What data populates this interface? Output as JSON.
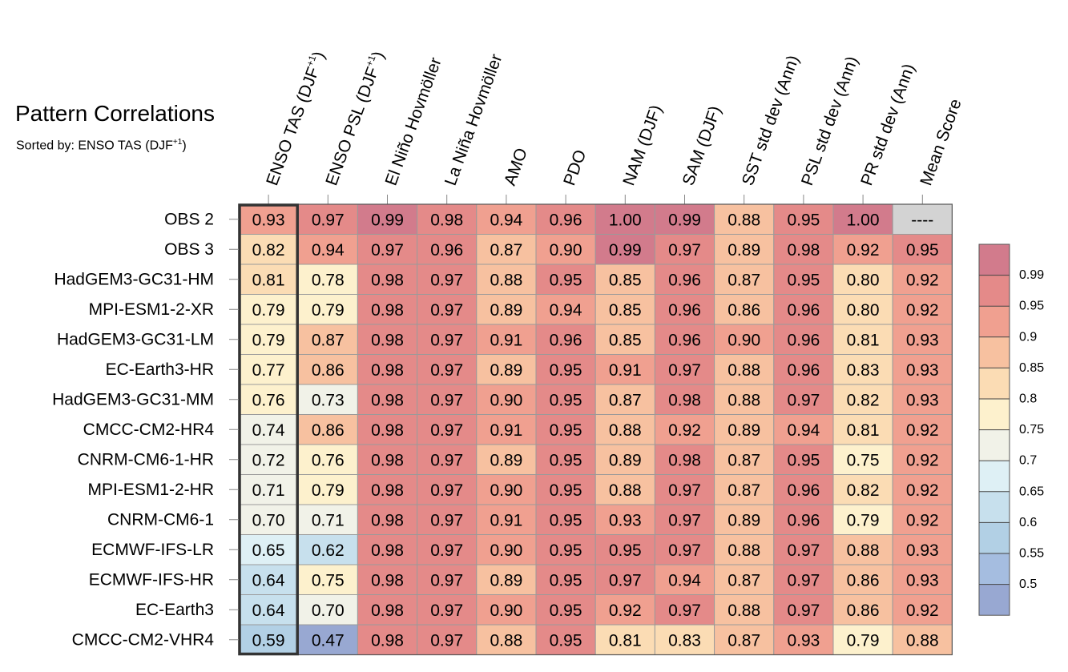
{
  "chart_data": {
    "type": "heatmap",
    "title": "Pattern Correlations",
    "subtitle": "Sorted by: ENSO TAS (DJF",
    "subtitle_sup": "+1",
    "subtitle_end": ")",
    "columns": [
      {
        "label": "ENSO TAS (DJF",
        "sup": "+1",
        "end": ")"
      },
      {
        "label": "ENSO PSL (DJF",
        "sup": "+1",
        "end": ")"
      },
      {
        "label": "El Niño Hovmöller",
        "sup": "",
        "end": ""
      },
      {
        "label": "La Niña Hovmöller",
        "sup": "",
        "end": ""
      },
      {
        "label": "AMO",
        "sup": "",
        "end": ""
      },
      {
        "label": "PDO",
        "sup": "",
        "end": ""
      },
      {
        "label": "NAM (DJF)",
        "sup": "",
        "end": ""
      },
      {
        "label": "SAM (DJF)",
        "sup": "",
        "end": ""
      },
      {
        "label": "SST std dev (Ann)",
        "sup": "",
        "end": ""
      },
      {
        "label": "PSL std dev (Ann)",
        "sup": "",
        "end": ""
      },
      {
        "label": "PR std dev (Ann)",
        "sup": "",
        "end": ""
      },
      {
        "label": "Mean Score",
        "sup": "",
        "end": ""
      }
    ],
    "rows": [
      {
        "name": "OBS 2",
        "values": [
          0.93,
          0.97,
          0.99,
          0.98,
          0.94,
          0.96,
          1.0,
          0.99,
          0.88,
          0.95,
          1.0,
          null
        ],
        "mean_text": "----"
      },
      {
        "name": "OBS 3",
        "values": [
          0.82,
          0.94,
          0.97,
          0.96,
          0.87,
          0.9,
          0.99,
          0.97,
          0.89,
          0.98,
          0.92,
          0.95
        ]
      },
      {
        "name": "HadGEM3-GC31-HM",
        "values": [
          0.81,
          0.78,
          0.98,
          0.97,
          0.88,
          0.95,
          0.85,
          0.96,
          0.87,
          0.95,
          0.8,
          0.92
        ]
      },
      {
        "name": "MPI-ESM1-2-XR",
        "values": [
          0.79,
          0.79,
          0.98,
          0.97,
          0.89,
          0.94,
          0.85,
          0.96,
          0.86,
          0.96,
          0.8,
          0.92
        ]
      },
      {
        "name": "HadGEM3-GC31-LM",
        "values": [
          0.79,
          0.87,
          0.98,
          0.97,
          0.91,
          0.96,
          0.85,
          0.96,
          0.9,
          0.96,
          0.81,
          0.93
        ]
      },
      {
        "name": "EC-Earth3-HR",
        "values": [
          0.77,
          0.86,
          0.98,
          0.97,
          0.89,
          0.95,
          0.91,
          0.97,
          0.88,
          0.96,
          0.83,
          0.93
        ]
      },
      {
        "name": "HadGEM3-GC31-MM",
        "values": [
          0.76,
          0.73,
          0.98,
          0.97,
          0.9,
          0.95,
          0.87,
          0.98,
          0.88,
          0.97,
          0.82,
          0.93
        ]
      },
      {
        "name": "CMCC-CM2-HR4",
        "values": [
          0.74,
          0.86,
          0.98,
          0.97,
          0.91,
          0.95,
          0.88,
          0.92,
          0.89,
          0.94,
          0.81,
          0.92
        ]
      },
      {
        "name": "CNRM-CM6-1-HR",
        "values": [
          0.72,
          0.76,
          0.98,
          0.97,
          0.89,
          0.95,
          0.89,
          0.98,
          0.87,
          0.95,
          0.75,
          0.92
        ]
      },
      {
        "name": "MPI-ESM1-2-HR",
        "values": [
          0.71,
          0.79,
          0.98,
          0.97,
          0.9,
          0.95,
          0.88,
          0.97,
          0.87,
          0.96,
          0.82,
          0.92
        ]
      },
      {
        "name": "CNRM-CM6-1",
        "values": [
          0.7,
          0.71,
          0.98,
          0.97,
          0.91,
          0.95,
          0.93,
          0.97,
          0.89,
          0.96,
          0.79,
          0.92
        ]
      },
      {
        "name": "ECMWF-IFS-LR",
        "values": [
          0.65,
          0.62,
          0.98,
          0.97,
          0.9,
          0.95,
          0.95,
          0.97,
          0.88,
          0.97,
          0.88,
          0.93
        ]
      },
      {
        "name": "ECMWF-IFS-HR",
        "values": [
          0.64,
          0.75,
          0.98,
          0.97,
          0.89,
          0.95,
          0.97,
          0.94,
          0.87,
          0.97,
          0.86,
          0.93
        ]
      },
      {
        "name": "EC-Earth3",
        "values": [
          0.64,
          0.7,
          0.98,
          0.97,
          0.9,
          0.95,
          0.92,
          0.97,
          0.88,
          0.97,
          0.86,
          0.92
        ]
      },
      {
        "name": "CMCC-CM2-VHR4",
        "values": [
          0.59,
          0.47,
          0.98,
          0.97,
          0.88,
          0.95,
          0.81,
          0.83,
          0.87,
          0.93,
          0.79,
          0.88
        ]
      }
    ],
    "highlighted_column": 0,
    "colorbar": {
      "levels": [
        "0.99",
        "0.95",
        "0.9",
        "0.85",
        "0.8",
        "0.75",
        "0.7",
        "0.65",
        "0.6",
        "0.55",
        "0.5"
      ],
      "colors": [
        "#d27b8c",
        "#e48a89",
        "#f0a090",
        "#f7c1a0",
        "#fbdcb4",
        "#fdf1cd",
        "#f1f2e8",
        "#def0f5",
        "#c7e0ed",
        "#b2d0e5",
        "#a5bde0",
        "#98a8d2"
      ]
    },
    "missing_color": "#d3d3d3"
  }
}
